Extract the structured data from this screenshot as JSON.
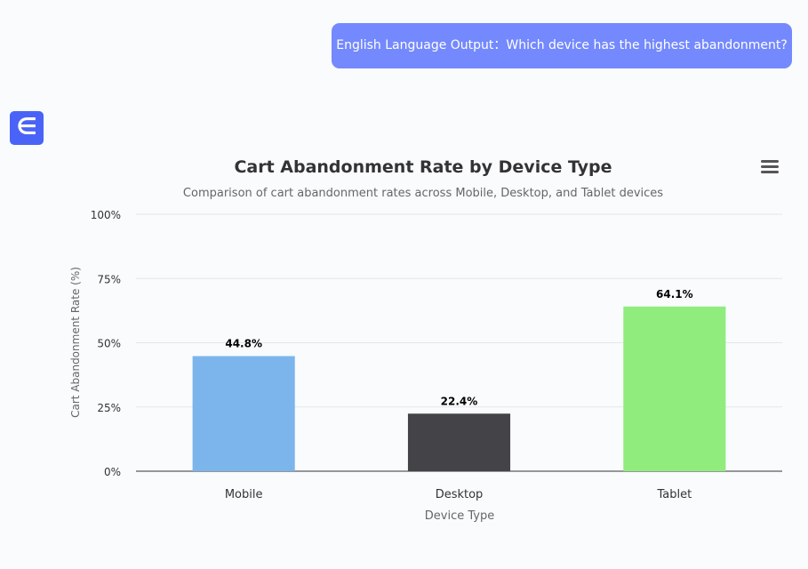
{
  "chat": {
    "user_message": "English Language Output：Which device has the highest abandonment?",
    "logo_letter": "∈"
  },
  "chart_data": {
    "type": "bar",
    "title": "Cart Abandonment Rate by Device Type",
    "subtitle": "Comparison of cart abandonment rates across Mobile, Desktop, and Tablet devices",
    "xlabel": "Device Type",
    "ylabel": "Cart Abandonment Rate (%)",
    "categories": [
      "Mobile",
      "Desktop",
      "Tablet"
    ],
    "values": [
      44.8,
      22.4,
      64.1
    ],
    "data_labels": [
      "44.8%",
      "22.4%",
      "64.1%"
    ],
    "colors": [
      "#7cb5ec",
      "#434348",
      "#90ed7d"
    ],
    "ylim": [
      0,
      100
    ],
    "yticks": [
      "0%",
      "25%",
      "50%",
      "75%",
      "100%"
    ],
    "grid": true,
    "legend": "none"
  },
  "icons": {
    "menu": "hamburger-menu-icon"
  }
}
